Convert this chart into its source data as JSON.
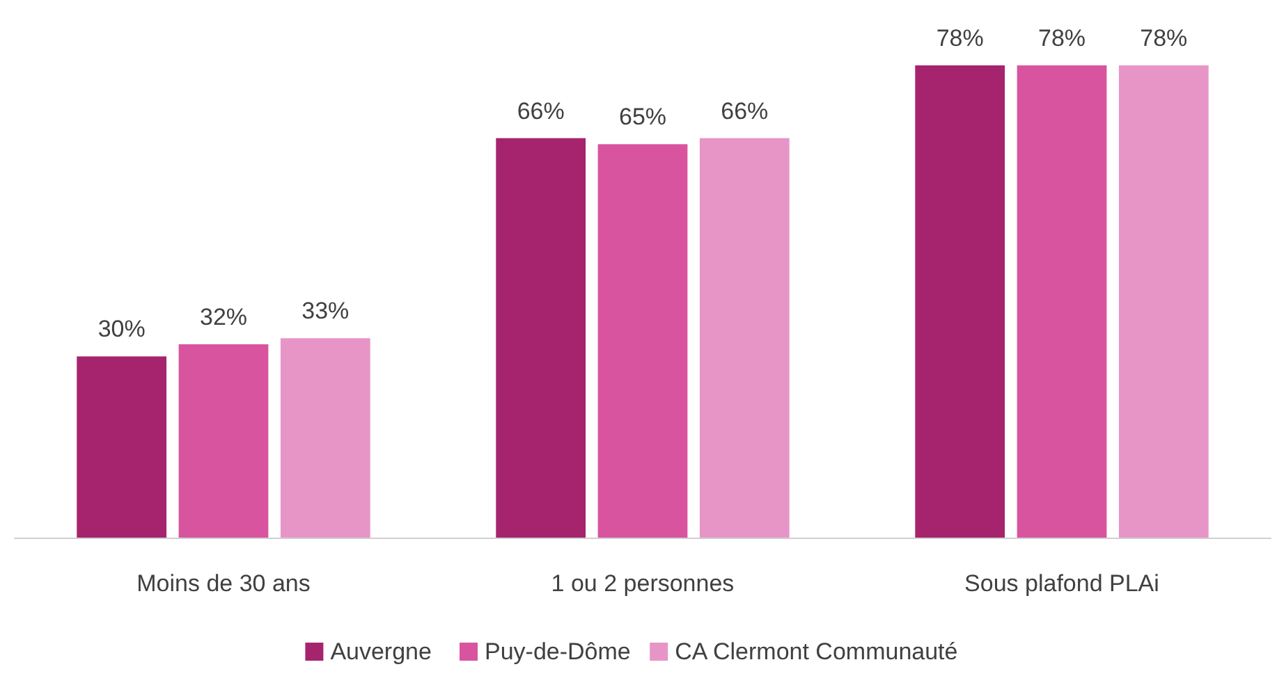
{
  "chart_data": {
    "type": "bar",
    "categories": [
      "Moins de 30 ans",
      "1 ou 2 personnes",
      "Sous plafond PLAi"
    ],
    "series": [
      {
        "name": "Auvergne",
        "color": "#a6246e",
        "values": [
          30,
          66,
          78
        ],
        "value_labels": [
          "30%",
          "66%",
          "78%"
        ]
      },
      {
        "name": "Puy-de-Dôme",
        "color": "#d9549e",
        "values": [
          32,
          65,
          78
        ],
        "value_labels": [
          "32%",
          "65%",
          "78%"
        ]
      },
      {
        "name": "CA Clermont Communauté",
        "color": "#e795c6",
        "values": [
          33,
          66,
          78
        ],
        "value_labels": [
          "33%",
          "66%",
          "78%"
        ]
      }
    ],
    "legend": "bottom"
  }
}
